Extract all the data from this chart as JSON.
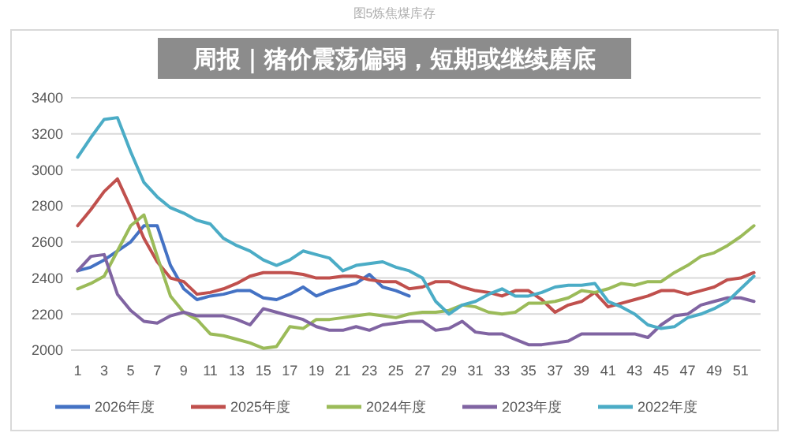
{
  "chart_data": {
    "type": "line",
    "title": "周报｜猪价震荡偏弱，短期或继续磨底",
    "subtitle": "图5炼焦煤库存",
    "x": [
      1,
      2,
      3,
      4,
      5,
      6,
      7,
      8,
      9,
      10,
      11,
      12,
      13,
      14,
      15,
      16,
      17,
      18,
      19,
      20,
      21,
      22,
      23,
      24,
      25,
      26,
      27,
      28,
      29,
      30,
      31,
      32,
      33,
      34,
      35,
      36,
      37,
      38,
      39,
      40,
      41,
      42,
      43,
      44,
      45,
      46,
      47,
      48,
      49,
      50,
      51,
      52
    ],
    "xlim": [
      0.5,
      52.5
    ],
    "xticks": [
      1,
      3,
      5,
      7,
      9,
      11,
      13,
      15,
      17,
      19,
      21,
      23,
      25,
      27,
      29,
      31,
      33,
      35,
      37,
      39,
      41,
      43,
      45,
      47,
      49,
      51
    ],
    "ylim": [
      2000,
      3400
    ],
    "yticks": [
      2000,
      2200,
      2400,
      2600,
      2800,
      3000,
      3200,
      3400
    ],
    "grid": "y",
    "legend": "bottom",
    "marker": "none",
    "line_style": "solid",
    "series": [
      {
        "name": "2026年度",
        "color": "#4472c4",
        "values": [
          2440,
          2460,
          2500,
          2550,
          2600,
          2690,
          2690,
          2470,
          2340,
          2280,
          2300,
          2310,
          2330,
          2330,
          2290,
          2280,
          2310,
          2350,
          2300,
          2330,
          2350,
          2370,
          2420,
          2350,
          2330,
          2300,
          null,
          null,
          null,
          null,
          null,
          null,
          null,
          null,
          null,
          null,
          null,
          null,
          null,
          null,
          null,
          null,
          null,
          null,
          null,
          null,
          null,
          null,
          null,
          null,
          null,
          null
        ]
      },
      {
        "name": "2025年度",
        "color": "#c0504d",
        "values": [
          2690,
          2780,
          2880,
          2950,
          2790,
          2620,
          2490,
          2400,
          2380,
          2310,
          2320,
          2340,
          2370,
          2410,
          2430,
          2430,
          2430,
          2420,
          2400,
          2400,
          2410,
          2410,
          2390,
          2380,
          2380,
          2340,
          2350,
          2380,
          2380,
          2350,
          2330,
          2320,
          2300,
          2330,
          2330,
          2280,
          2210,
          2250,
          2270,
          2320,
          2240,
          2260,
          2280,
          2300,
          2330,
          2330,
          2310,
          2330,
          2350,
          2390,
          2400,
          2430
        ]
      },
      {
        "name": "2024年度",
        "color": "#9bbb59",
        "values": [
          2340,
          2370,
          2410,
          2550,
          2690,
          2750,
          2520,
          2300,
          2210,
          2170,
          2090,
          2080,
          2060,
          2040,
          2010,
          2020,
          2130,
          2120,
          2170,
          2170,
          2180,
          2190,
          2200,
          2190,
          2180,
          2200,
          2210,
          2210,
          2220,
          2250,
          2240,
          2210,
          2200,
          2210,
          2260,
          2260,
          2270,
          2290,
          2330,
          2320,
          2340,
          2370,
          2360,
          2380,
          2380,
          2430,
          2470,
          2520,
          2540,
          2580,
          2630,
          2690
        ]
      },
      {
        "name": "2023年度",
        "color": "#8064a2",
        "values": [
          2440,
          2520,
          2530,
          2310,
          2220,
          2160,
          2150,
          2190,
          2210,
          2190,
          2190,
          2190,
          2170,
          2140,
          2230,
          2210,
          2190,
          2170,
          2130,
          2110,
          2110,
          2130,
          2110,
          2140,
          2150,
          2160,
          2160,
          2110,
          2120,
          2160,
          2100,
          2090,
          2090,
          2060,
          2030,
          2030,
          2040,
          2050,
          2090,
          2090,
          2090,
          2090,
          2090,
          2070,
          2140,
          2190,
          2200,
          2250,
          2270,
          2290,
          2290,
          2270
        ]
      },
      {
        "name": "2022年度",
        "color": "#4bacc6",
        "values": [
          3070,
          3180,
          3280,
          3290,
          3100,
          2930,
          2850,
          2790,
          2760,
          2720,
          2700,
          2620,
          2580,
          2550,
          2500,
          2470,
          2500,
          2550,
          2530,
          2510,
          2440,
          2470,
          2480,
          2490,
          2460,
          2440,
          2400,
          2270,
          2200,
          2250,
          2270,
          2310,
          2340,
          2300,
          2300,
          2320,
          2350,
          2360,
          2360,
          2370,
          2270,
          2240,
          2200,
          2140,
          2120,
          2130,
          2180,
          2200,
          2230,
          2270,
          2340,
          2410
        ]
      }
    ]
  }
}
